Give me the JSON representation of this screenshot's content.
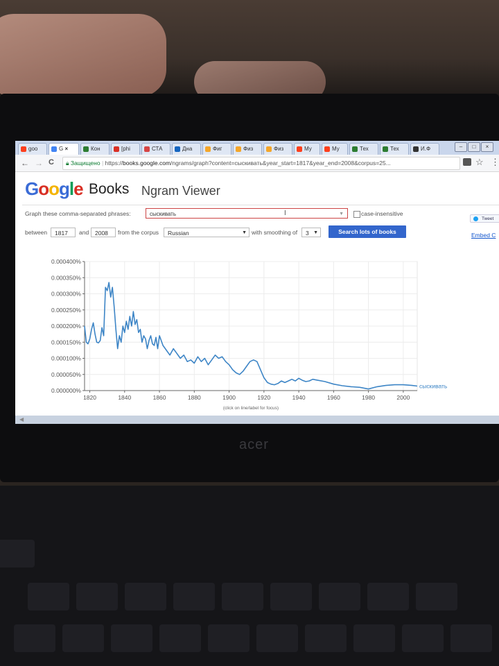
{
  "browser": {
    "tabs": [
      {
        "label": "goo",
        "color": "#fc3f1d"
      },
      {
        "label": "G",
        "color": "#4285f4",
        "close": "×",
        "active": true
      },
      {
        "label": "Кон",
        "color": "#2e7d32"
      },
      {
        "label": "[phi",
        "color": "#d93025"
      },
      {
        "label": "СТА",
        "color": "#d64545"
      },
      {
        "label": "Дна",
        "color": "#1565c0"
      },
      {
        "label": "Фиг",
        "color": "#f4a62a"
      },
      {
        "label": "Физ",
        "color": "#f4a62a"
      },
      {
        "label": "Физ",
        "color": "#f4a62a"
      },
      {
        "label": "Му",
        "color": "#fc3f1d"
      },
      {
        "label": "Му",
        "color": "#fc3f1d"
      },
      {
        "label": "Тех",
        "color": "#2e7d32"
      },
      {
        "label": "Тех",
        "color": "#2e7d32"
      },
      {
        "label": "И.Ф",
        "color": "#333333"
      }
    ],
    "back": "←",
    "forward": "→",
    "reload": "C",
    "secure_label": "Защищено",
    "url_prefix": "https://",
    "url_host": "books.google.com",
    "url_rest": "/ngrams/graph?content=сыскивать&year_start=1817&year_end=2008&corpus=25...",
    "star": "☆"
  },
  "header": {
    "brand_letters": [
      {
        "ch": "G",
        "color": "#3b6cd6"
      },
      {
        "ch": "o",
        "color": "#d93025"
      },
      {
        "ch": "o",
        "color": "#f4b400"
      },
      {
        "ch": "g",
        "color": "#3b6cd6"
      },
      {
        "ch": "l",
        "color": "#0f9d58"
      },
      {
        "ch": "e",
        "color": "#d93025"
      }
    ],
    "books": "Books",
    "product": "Ngram Viewer"
  },
  "form": {
    "phrases_label": "Graph these comma-separated phrases:",
    "phrases_value": "сыскивать",
    "case_insensitive_label": "case-insensitive",
    "between_label": "between",
    "year_start": "1817",
    "and_label": "and",
    "year_end": "2008",
    "corpus_label": "from the corpus",
    "corpus_value": "Russian",
    "smoothing_label": "with smoothing of",
    "smoothing_value": "3",
    "search_button": "Search lots of books",
    "tweet": "Tweet",
    "embed": "Embed C"
  },
  "chart_data": {
    "type": "line",
    "y_ticks": [
      "0.000000%",
      "0.000050%",
      "0.000100%",
      "0.000150%",
      "0.000200%",
      "0.000250%",
      "0.000300%",
      "0.000350%",
      "0.000400%"
    ],
    "x_ticks": [
      "1820",
      "1840",
      "1860",
      "1880",
      "1900",
      "1920",
      "1940",
      "1960",
      "1980",
      "2000"
    ],
    "xlim": [
      1817,
      2008
    ],
    "ylim": [
      0,
      0.0004
    ],
    "line_color": "#3d85c6",
    "grid": true,
    "note": "(click on line/label for focus)",
    "series": [
      {
        "name": "сыскивать",
        "x": [
          1817,
          1818,
          1819,
          1820,
          1821,
          1822,
          1823,
          1824,
          1825,
          1826,
          1827,
          1828,
          1829,
          1830,
          1831,
          1832,
          1833,
          1834,
          1835,
          1836,
          1837,
          1838,
          1839,
          1840,
          1841,
          1842,
          1843,
          1844,
          1845,
          1846,
          1847,
          1848,
          1849,
          1850,
          1851,
          1852,
          1853,
          1854,
          1855,
          1856,
          1857,
          1858,
          1859,
          1860,
          1862,
          1864,
          1866,
          1868,
          1870,
          1872,
          1874,
          1876,
          1878,
          1880,
          1882,
          1884,
          1886,
          1888,
          1890,
          1892,
          1894,
          1896,
          1898,
          1900,
          1902,
          1904,
          1906,
          1908,
          1910,
          1912,
          1914,
          1916,
          1918,
          1920,
          1922,
          1924,
          1926,
          1928,
          1930,
          1932,
          1934,
          1936,
          1938,
          1940,
          1942,
          1944,
          1946,
          1948,
          1950,
          1955,
          1960,
          1965,
          1970,
          1975,
          1980,
          1985,
          1990,
          1995,
          2000,
          2005,
          2008
        ],
        "values": [
          0.0002,
          0.00015,
          0.000145,
          0.00016,
          0.00019,
          0.00021,
          0.000175,
          0.00015,
          0.000148,
          0.000155,
          0.000195,
          0.00017,
          0.00032,
          0.00031,
          0.000335,
          0.00029,
          0.00032,
          0.00026,
          0.00019,
          0.00013,
          0.00017,
          0.00015,
          0.0002,
          0.00018,
          0.000215,
          0.00019,
          0.00023,
          0.0002,
          0.000245,
          0.000205,
          0.00022,
          0.00018,
          0.00019,
          0.00015,
          0.00017,
          0.00016,
          0.00013,
          0.000155,
          0.00017,
          0.000145,
          0.00014,
          0.000165,
          0.00013,
          0.00017,
          0.00014,
          0.000125,
          0.00011,
          0.00013,
          0.000115,
          0.0001,
          0.00011,
          9e-05,
          9.5e-05,
          8.5e-05,
          0.000105,
          9e-05,
          0.0001,
          8e-05,
          9.5e-05,
          0.00011,
          0.0001,
          0.000105,
          9e-05,
          8e-05,
          6.5e-05,
          5.5e-05,
          5e-05,
          6e-05,
          7.5e-05,
          9e-05,
          9.5e-05,
          9e-05,
          6.5e-05,
          4e-05,
          2.5e-05,
          2e-05,
          1.8e-05,
          2.2e-05,
          3e-05,
          2.5e-05,
          3e-05,
          3.5e-05,
          3e-05,
          3.8e-05,
          3.2e-05,
          2.8e-05,
          3e-05,
          3.5e-05,
          3.3e-05,
          2.8e-05,
          2e-05,
          1.5e-05,
          1.2e-05,
          1e-05,
          5e-06,
          1.2e-05,
          1.6e-05,
          1.8e-05,
          1.8e-05,
          1.6e-05,
          1.4e-05
        ]
      }
    ],
    "series_label": "сыскивать"
  }
}
